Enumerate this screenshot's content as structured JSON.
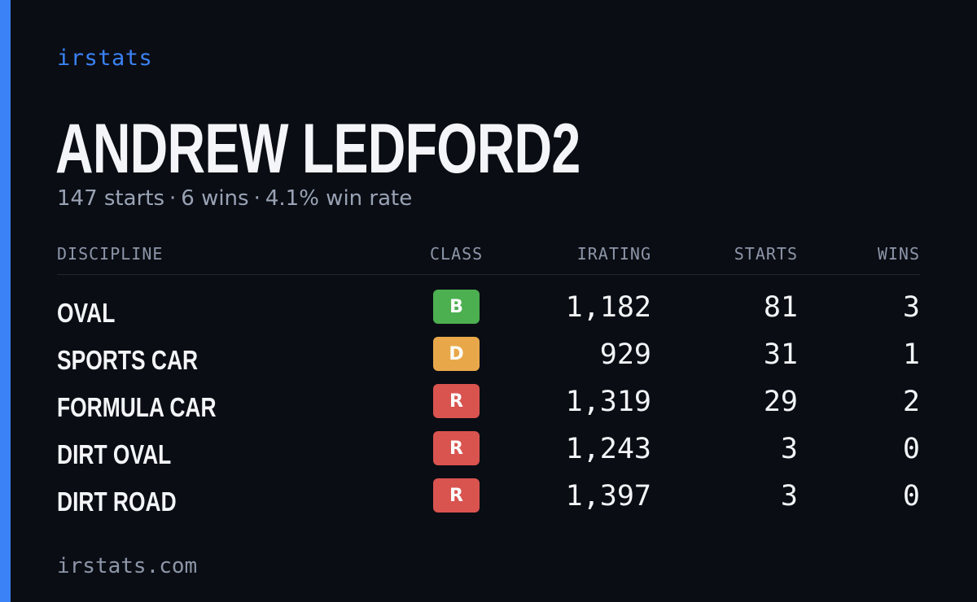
{
  "brand": "irstats",
  "driver_name": "ANDREW LEDFORD2",
  "summary": {
    "starts": "147 starts",
    "wins": "6 wins",
    "win_rate": "4.1% win rate",
    "separator": "·"
  },
  "columns": {
    "discipline": "DISCIPLINE",
    "class": "CLASS",
    "irating": "IRATING",
    "starts": "STARTS",
    "wins": "WINS"
  },
  "rows": [
    {
      "discipline": "OVAL",
      "class": "B",
      "class_color": "#4caf50",
      "irating": "1,182",
      "starts": "81",
      "wins": "3"
    },
    {
      "discipline": "SPORTS CAR",
      "class": "D",
      "class_color": "#e8a84a",
      "irating": "929",
      "starts": "31",
      "wins": "1"
    },
    {
      "discipline": "FORMULA CAR",
      "class": "R",
      "class_color": "#d9534f",
      "irating": "1,319",
      "starts": "29",
      "wins": "2"
    },
    {
      "discipline": "DIRT OVAL",
      "class": "R",
      "class_color": "#d9534f",
      "irating": "1,243",
      "starts": "3",
      "wins": "0"
    },
    {
      "discipline": "DIRT ROAD",
      "class": "R",
      "class_color": "#d9534f",
      "irating": "1,397",
      "starts": "3",
      "wins": "0"
    }
  ],
  "footer": "irstats.com",
  "colors": {
    "accent": "#3b82f6",
    "background": "#0a0d14",
    "muted_text": "#9aa3b5"
  }
}
